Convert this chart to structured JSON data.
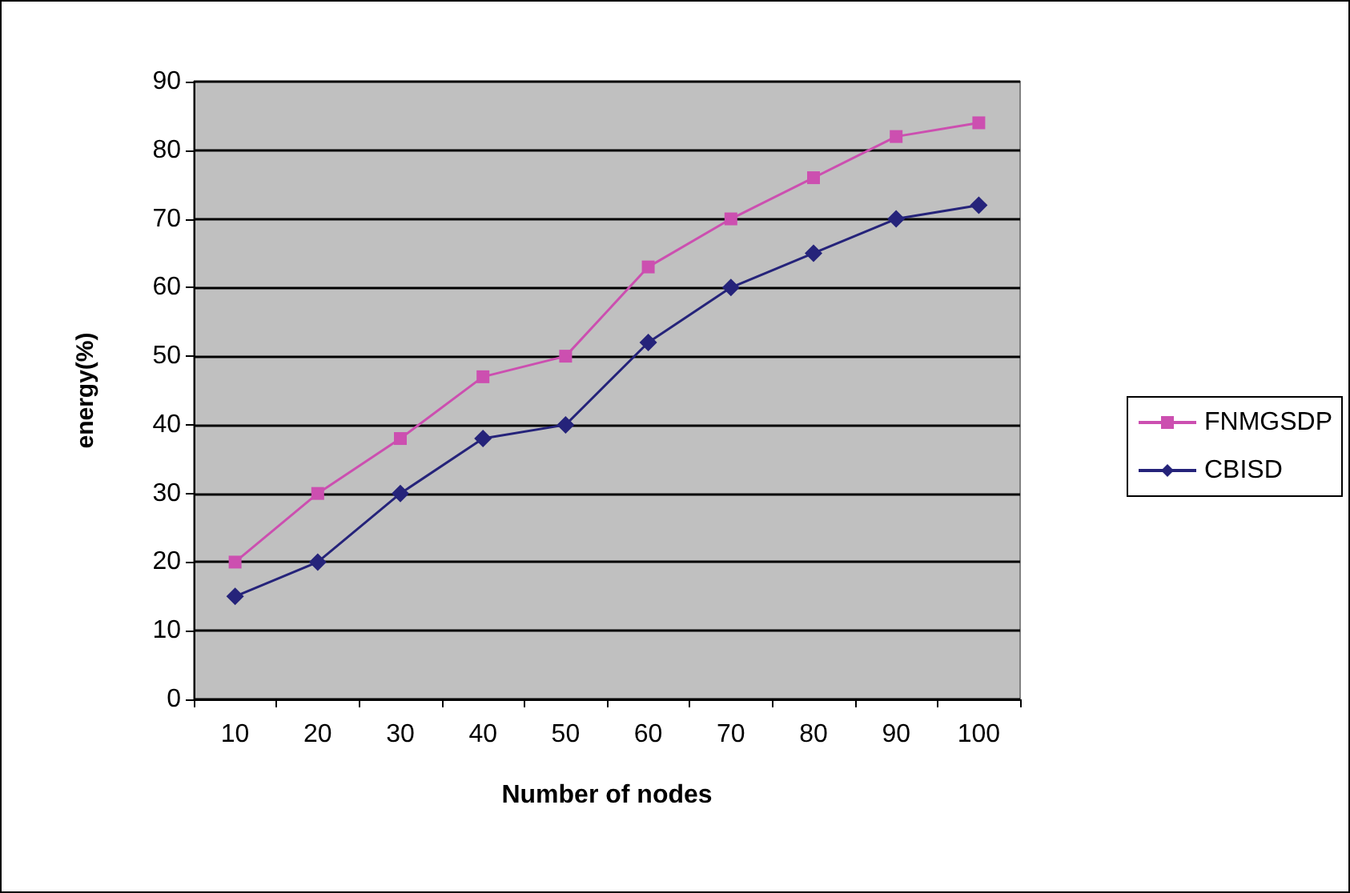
{
  "chart_data": {
    "type": "line",
    "xlabel": "Number of nodes",
    "ylabel": "energy(%)",
    "categories": [
      "10",
      "20",
      "30",
      "40",
      "50",
      "60",
      "70",
      "80",
      "90",
      "100"
    ],
    "series": [
      {
        "name": "FNMGSDP",
        "color": "#cc4fb0",
        "marker": "square",
        "values": [
          20,
          30,
          38,
          47,
          50,
          63,
          70,
          76,
          82,
          84
        ]
      },
      {
        "name": "CBISD",
        "color": "#25237a",
        "marker": "diamond",
        "values": [
          15,
          20,
          30,
          38,
          40,
          52,
          60,
          65,
          70,
          72
        ]
      }
    ],
    "ylim": [
      0,
      90
    ],
    "yticks": [
      0,
      10,
      20,
      30,
      40,
      50,
      60,
      70,
      80,
      90
    ],
    "grid": "y",
    "legend": "right"
  }
}
